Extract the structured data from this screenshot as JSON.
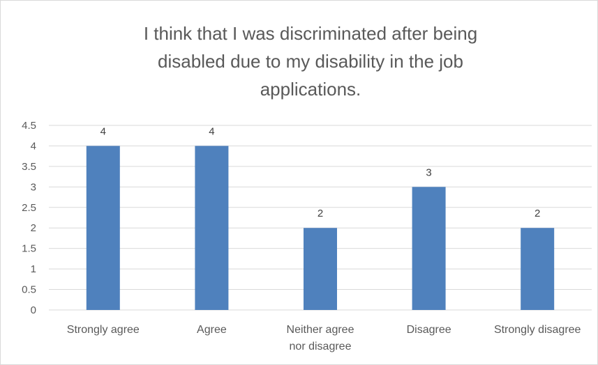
{
  "chart_data": {
    "type": "bar",
    "title_lines": [
      "I think that I was discriminated after being",
      "disabled due to my disability in the job",
      "applications."
    ],
    "categories": [
      [
        "Strongly agree"
      ],
      [
        "Agree"
      ],
      [
        "Neither agree",
        "nor disagree"
      ],
      [
        "Disagree"
      ],
      [
        "Strongly disagree"
      ]
    ],
    "values": [
      4,
      4,
      2,
      3,
      2
    ],
    "data_labels": [
      "4",
      "4",
      "2",
      "3",
      "2"
    ],
    "ylim": [
      0,
      4.5
    ],
    "y_ticks": [
      "0",
      "0.5",
      "1",
      "1.5",
      "2",
      "2.5",
      "3",
      "3.5",
      "4",
      "4.5"
    ],
    "xlabel": "",
    "ylabel": "",
    "grid": true,
    "legend": "none",
    "bar_color": "#4f81bd",
    "grid_color": "#d9d9d9"
  }
}
